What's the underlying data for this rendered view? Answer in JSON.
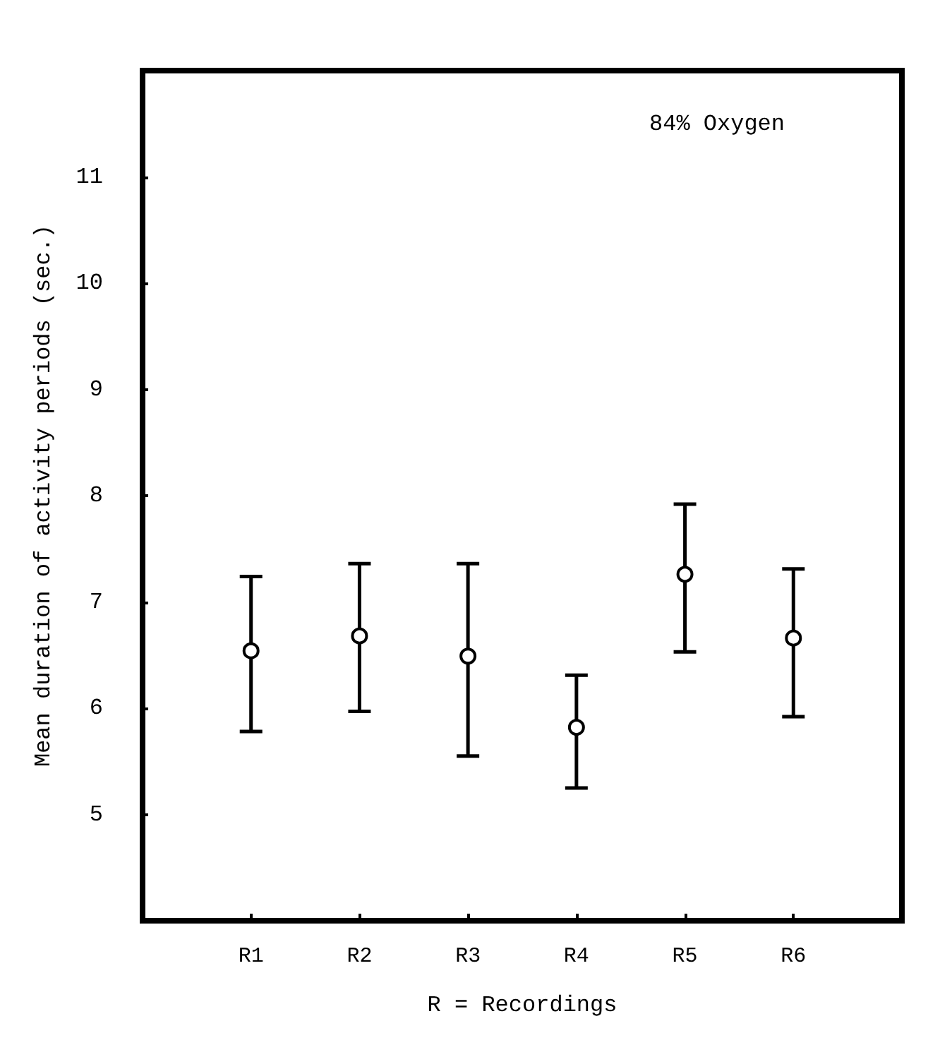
{
  "chart_data": {
    "type": "scatter",
    "xlabel": "R = Recordings",
    "ylabel": "Mean duration of activity periods (sec.)",
    "annotations": [
      "84% Oxygen"
    ],
    "categories": [
      "R1",
      "R2",
      "R3",
      "R4",
      "R5",
      "R6"
    ],
    "series": [
      {
        "color": "#000000",
        "values": [
          6.54,
          6.68,
          6.49,
          5.82,
          7.26,
          6.66
        ],
        "errors": [
          [
            5.78,
            7.24
          ],
          [
            5.97,
            7.36
          ],
          [
            5.55,
            7.36
          ],
          [
            5.25,
            6.31
          ],
          [
            6.53,
            7.92
          ],
          [
            5.92,
            7.31
          ]
        ]
      }
    ],
    "ylim": [
      4,
      12
    ],
    "yticks": [
      5,
      6,
      7,
      8,
      9,
      10,
      11
    ],
    "marker": "circle"
  }
}
